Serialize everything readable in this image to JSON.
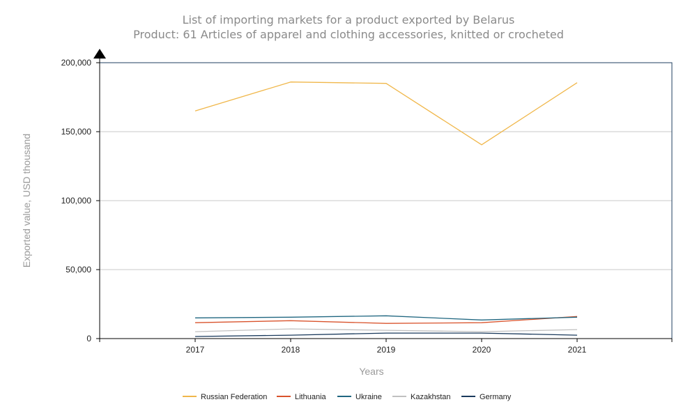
{
  "chart_data": {
    "type": "line",
    "title": "List of importing markets for a product exported by Belarus",
    "subtitle": "Product: 61 Articles of apparel and clothing accessories, knitted or crocheted",
    "xlabel": "Years",
    "ylabel": "Exported value, USD thousand",
    "categories": [
      "2017",
      "2018",
      "2019",
      "2020",
      "2021"
    ],
    "ylim": [
      0,
      200000
    ],
    "yticks": [
      0,
      50000,
      100000,
      150000,
      200000
    ],
    "ytick_labels": [
      "0",
      "50,000",
      "100,000",
      "150,000",
      "200,000"
    ],
    "grid": true,
    "legend_position": "bottom",
    "series": [
      {
        "name": "Russian Federation",
        "color": "#f0b74a",
        "values": [
          165000,
          186000,
          185000,
          140500,
          185500
        ]
      },
      {
        "name": "Lithuania",
        "color": "#d9532c",
        "values": [
          11500,
          13000,
          11000,
          11500,
          16000
        ]
      },
      {
        "name": "Ukraine",
        "color": "#1f6680",
        "values": [
          15000,
          15500,
          16500,
          13500,
          15500
        ]
      },
      {
        "name": "Kazakhstan",
        "color": "#c0c0c0",
        "values": [
          5000,
          7000,
          6000,
          5000,
          6500
        ]
      },
      {
        "name": "Germany",
        "color": "#1a3a5c",
        "values": [
          1500,
          2500,
          4000,
          4000,
          2500
        ]
      }
    ]
  }
}
